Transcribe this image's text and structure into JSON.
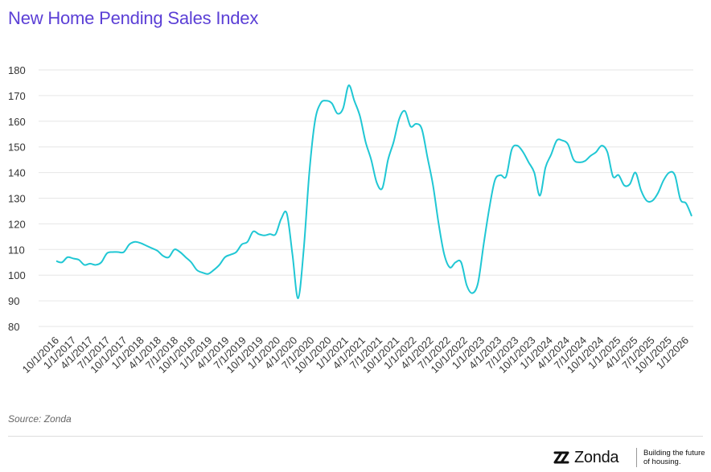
{
  "header": {
    "title": "New Home Pending Sales Index"
  },
  "footer": {
    "source": "Source: Zonda",
    "brand_name": "Zonda",
    "brand_tagline_line1": "Building the future",
    "brand_tagline_line2": "of housing."
  },
  "colors": {
    "title": "#5b3fd6",
    "line": "#20c7d4",
    "grid": "#e6e6e6"
  },
  "chart_data": {
    "type": "line",
    "title": "New Home Pending Sales Index",
    "xlabel": "",
    "ylabel": "",
    "ylim": [
      80,
      180
    ],
    "yticks": [
      80,
      90,
      100,
      110,
      120,
      130,
      140,
      150,
      160,
      170,
      180
    ],
    "grid": true,
    "xtick_labels": [
      "10/1/2016",
      "1/1/2017",
      "4/1/2017",
      "7/1/2017",
      "10/1/2017",
      "1/1/2018",
      "4/1/2018",
      "7/1/2018",
      "10/1/2018",
      "1/1/2019",
      "4/1/2019",
      "7/1/2019",
      "10/1/2019",
      "1/1/2020",
      "4/1/2020",
      "7/1/2020",
      "10/1/2020",
      "1/1/2021",
      "4/1/2021",
      "7/1/2021",
      "10/1/2021",
      "1/1/2022",
      "4/1/2022",
      "7/1/2022",
      "10/1/2022",
      "1/1/2023",
      "4/1/2023",
      "7/1/2023",
      "10/1/2023",
      "1/1/2024",
      "4/1/2024",
      "7/1/2024",
      "10/1/2024",
      "1/1/2025",
      "4/1/2025",
      "7/1/2025",
      "10/1/2025",
      "1/1/2026"
    ],
    "series": [
      {
        "values": [
          105.5,
          105,
          107,
          106.5,
          106,
          104,
          104.5,
          104,
          105,
          108.5,
          109,
          109,
          109,
          112,
          113,
          112.5,
          111.5,
          110.5,
          109.5,
          107.5,
          107,
          110,
          109,
          107,
          105,
          102,
          101,
          100.5,
          102,
          104,
          107,
          108,
          109,
          112,
          113,
          117,
          116,
          115.5,
          116,
          116,
          122,
          124,
          108,
          91,
          110,
          140,
          160,
          167,
          168,
          167,
          163,
          165,
          174,
          168,
          162,
          152,
          145,
          136,
          134,
          145,
          152,
          161,
          164,
          158,
          159,
          157,
          146,
          135,
          120,
          108,
          103,
          105,
          105,
          96,
          93,
          97,
          112,
          126,
          137,
          139,
          138.5,
          149,
          150.5,
          148,
          144,
          140,
          131,
          142,
          147,
          152.5,
          152.5,
          151,
          145,
          144,
          144.5,
          146.5,
          148,
          150.5,
          148,
          138.5,
          139,
          135,
          135.5,
          140,
          133,
          129,
          129,
          132,
          137,
          140,
          139,
          129.5,
          128,
          123
        ]
      }
    ]
  }
}
